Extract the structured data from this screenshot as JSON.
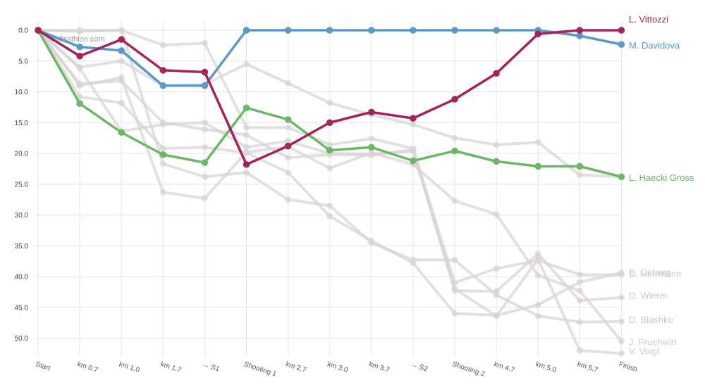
{
  "watermark": "realbiathlon.com",
  "chart_data": {
    "type": "line",
    "title": "",
    "xlabel": "",
    "ylabel": "",
    "ylim": [
      0,
      52.5
    ],
    "y_inverted": true,
    "yticks": [
      "0.0",
      "5.0",
      "10.0",
      "15.0",
      "20.0",
      "25.0",
      "30.0",
      "35.0",
      "40.0",
      "45.0",
      "50.0"
    ],
    "categories": [
      "Start",
      "km 0.7",
      "km 1.0",
      "km 1.7",
      "→ S1",
      "Shooting 1",
      "km 2.7",
      "km 3.0",
      "km 3.7",
      "→ S2",
      "Shooting 2",
      "km 4.7",
      "km 5.0",
      "km 5.7",
      "Finish"
    ],
    "highlight_series": [
      {
        "name": "L. Vittozzi",
        "color": "#a3235a",
        "values": [
          0,
          4.2,
          1.5,
          6.5,
          6.8,
          21.8,
          18.8,
          15.0,
          13.3,
          14.3,
          11.2,
          7.0,
          0.6,
          0.0,
          0.0
        ]
      },
      {
        "name": "M. Davidova",
        "color": "#5a9ac9",
        "values": [
          0,
          2.7,
          3.3,
          9.0,
          9.0,
          0.0,
          0.0,
          0.0,
          0.0,
          0.0,
          0.0,
          0.0,
          0.0,
          0.9,
          2.3
        ]
      },
      {
        "name": "L. Haecki Gross",
        "color": "#6ab765",
        "values": [
          0,
          11.9,
          16.6,
          20.2,
          21.5,
          12.6,
          14.5,
          19.5,
          19.0,
          21.2,
          19.6,
          21.3,
          22.1,
          22.1,
          23.8
        ]
      }
    ],
    "background_series": [
      {
        "name": "E. Oeberg",
        "values": [
          0,
          6.0,
          5.0,
          9.0,
          8.8,
          5.5,
          8.6,
          11.8,
          13.7,
          15.3,
          17.5,
          18.6,
          18.2,
          23.5,
          23.8
        ]
      },
      {
        "name": "D. Herrmann",
        "values": [
          0,
          0.0,
          0.0,
          2.4,
          2.1,
          15.8,
          15.8,
          18.6,
          17.6,
          19.2,
          41.0,
          38.7,
          37.4,
          39.7,
          39.7
        ]
      },
      {
        "name": "D. Wierer",
        "values": [
          0,
          8.7,
          8.2,
          15.0,
          16.1,
          17.0,
          20.7,
          20.2,
          20.3,
          19.4,
          42.3,
          42.4,
          36.3,
          43.9,
          43.4
        ]
      },
      {
        "name": "D. Blashko",
        "values": [
          0,
          0.2,
          0.0,
          21.7,
          23.8,
          23.1,
          27.5,
          28.5,
          34.5,
          37.3,
          37.3,
          43.0,
          46.4,
          47.4,
          47.3
        ]
      },
      {
        "name": "J. Fruehwirt",
        "values": [
          0,
          10.8,
          11.8,
          19.2,
          19.0,
          19.9,
          23.1,
          30.2,
          34.2,
          37.8,
          46.0,
          46.3,
          44.6,
          40.9,
          39.4
        ]
      },
      {
        "name": "V. Voigt",
        "values": [
          0,
          9.0,
          7.7,
          26.3,
          27.3,
          19.8,
          18.9,
          22.4,
          19.9,
          21.8,
          27.7,
          29.9,
          39.8,
          42.3,
          50.5
        ]
      },
      {
        "name": "",
        "values": [
          0,
          6.2,
          16.4,
          15.3,
          15.0,
          19.0,
          18.0,
          20.0,
          20.1,
          19.6,
          42.0,
          46.4,
          37.2,
          52.0,
          52.5
        ]
      }
    ],
    "background_color": "#d8d3d3",
    "background_labels": [
      {
        "name": "E. Oeberg",
        "y_value": 39.3
      },
      {
        "name": "D. Herrmann",
        "y_value": 39.6
      },
      {
        "name": "D. Wierer",
        "y_value": 43.1
      },
      {
        "name": "D. Blashko",
        "y_value": 47.0
      },
      {
        "name": "J. Fruehwirt",
        "y_value": 50.6
      },
      {
        "name": "V. Voigt",
        "y_value": 52.1
      }
    ]
  }
}
